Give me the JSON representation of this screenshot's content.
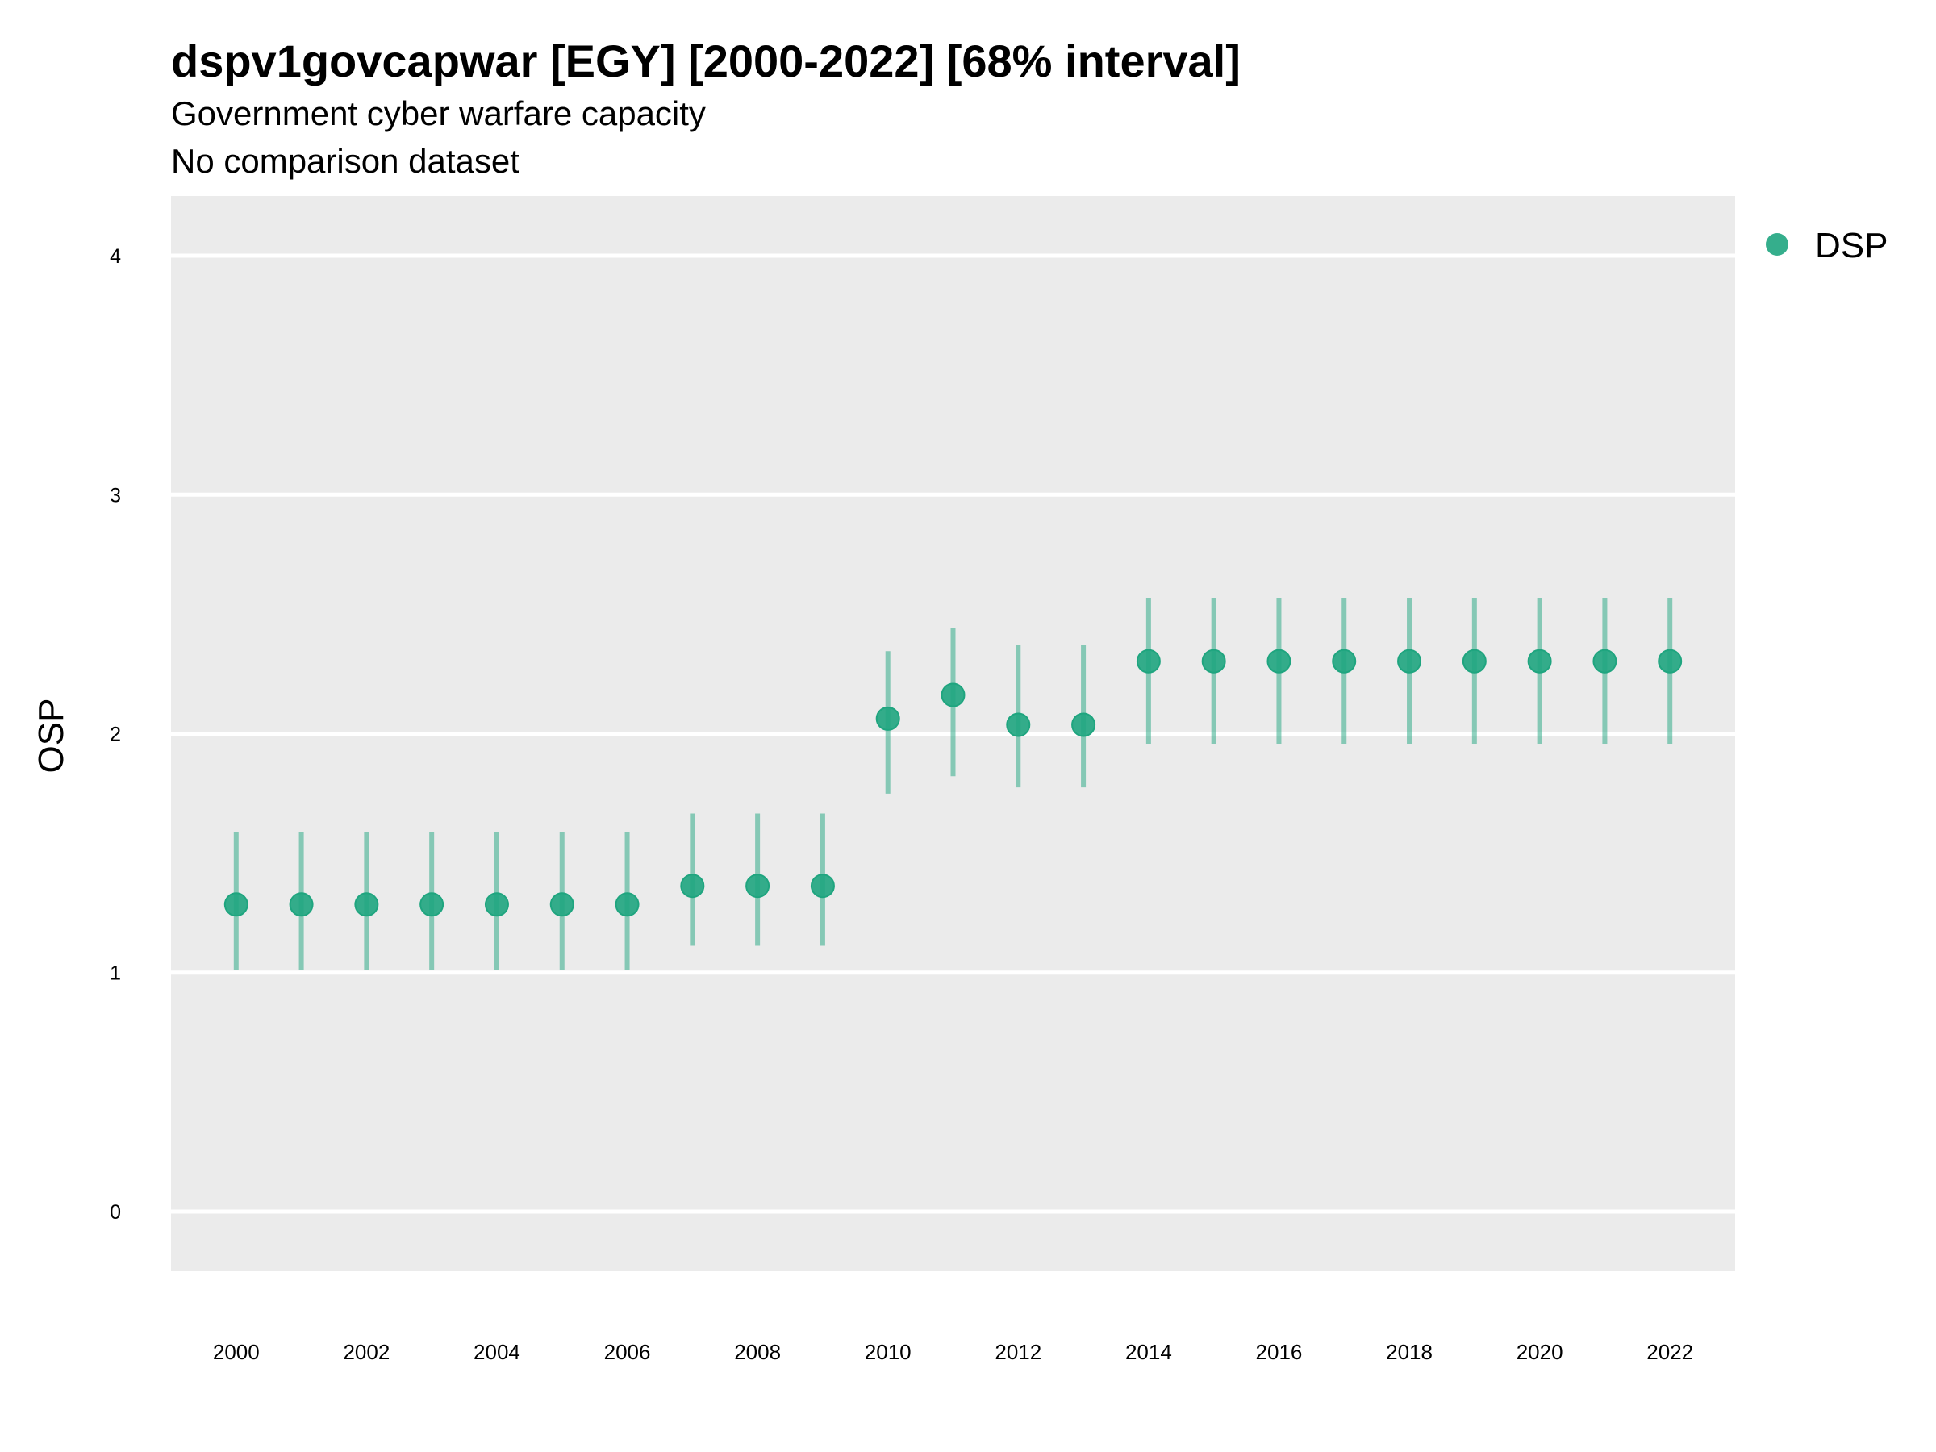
{
  "chart_data": {
    "type": "errorbar",
    "title": "dspv1govcapwar [EGY] [2000-2022] [68% interval]",
    "subtitle": [
      "Government cyber warfare capacity",
      "No comparison dataset"
    ],
    "y_label": "OSP",
    "x": [
      2000,
      2001,
      2002,
      2003,
      2004,
      2005,
      2006,
      2007,
      2008,
      2009,
      2010,
      2011,
      2012,
      2013,
      2014,
      2015,
      2016,
      2017,
      2018,
      2019,
      2020,
      2021,
      2022
    ],
    "series": [
      {
        "name": "DSP",
        "color": "#1fa57f",
        "values": [
          1.285,
          1.285,
          1.285,
          1.285,
          1.285,
          1.285,
          1.285,
          1.363,
          1.363,
          1.363,
          2.063,
          2.162,
          2.037,
          2.037,
          2.303,
          2.303,
          2.303,
          2.303,
          2.303,
          2.303,
          2.303,
          2.303,
          2.303
        ],
        "lower": [
          1.01,
          1.01,
          1.01,
          1.01,
          1.01,
          1.01,
          1.01,
          1.112,
          1.112,
          1.112,
          1.749,
          1.822,
          1.775,
          1.775,
          1.958,
          1.958,
          1.958,
          1.958,
          1.958,
          1.958,
          1.958,
          1.958,
          1.958
        ],
        "upper": [
          1.59,
          1.59,
          1.59,
          1.59,
          1.59,
          1.59,
          1.59,
          1.666,
          1.666,
          1.666,
          2.345,
          2.444,
          2.371,
          2.371,
          2.569,
          2.569,
          2.569,
          2.569,
          2.569,
          2.569,
          2.569,
          2.569,
          2.569
        ]
      }
    ],
    "xlim": [
      1999,
      2023
    ],
    "xticks": [
      2000,
      2002,
      2004,
      2006,
      2008,
      2010,
      2012,
      2014,
      2016,
      2018,
      2020,
      2022
    ],
    "ylim": [
      -0.25,
      4.25
    ],
    "yticks": [
      0,
      1,
      2,
      3,
      4
    ],
    "grid": true,
    "legend": "right"
  }
}
